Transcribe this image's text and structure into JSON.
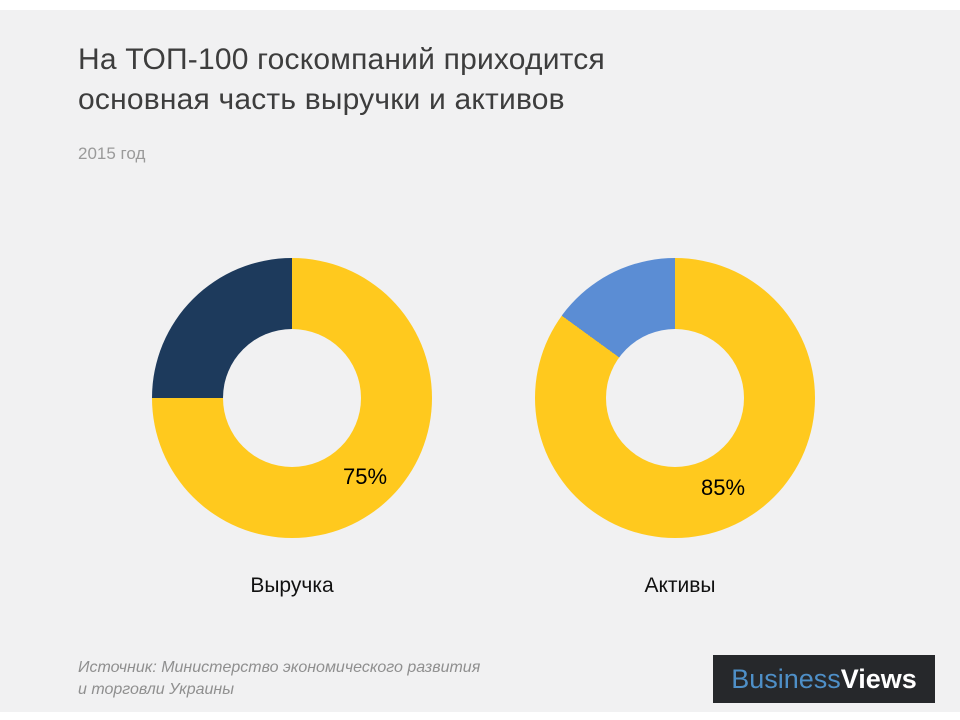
{
  "page": {
    "background": "#F1F1F2",
    "title_line1": "На ТОП-100 госкомпаний приходится",
    "title_line2": "основная часть выручки и активов",
    "subtitle": "2015 год",
    "source_line1": "Источник: Министерство экономического развития",
    "source_line2": "и торговли Украины"
  },
  "logo": {
    "part1": "Business",
    "part2": "Views",
    "background": "#26282B",
    "part1_color": "#4E8FC7",
    "part2_color": "#FFFFFF"
  },
  "colors": {
    "yellow": "#FFC91E",
    "navy": "#1D3A5C",
    "blue": "#5B8DD4",
    "title_text": "#3D3D3D",
    "muted_text": "#9A9A9A"
  },
  "chart_data": [
    {
      "type": "pie",
      "subtype": "donut",
      "category": "Выручка",
      "data_label": "75%",
      "start_angle_deg": 0,
      "direction": "clockwise",
      "hole_ratio": 0.49,
      "slices": [
        {
          "value": 75,
          "color": "#FFC91E"
        },
        {
          "value": 25,
          "color": "#1D3A5C"
        }
      ]
    },
    {
      "type": "pie",
      "subtype": "donut",
      "category": "Активы",
      "data_label": "85%",
      "start_angle_deg": 0,
      "direction": "clockwise",
      "hole_ratio": 0.49,
      "slices": [
        {
          "value": 85,
          "color": "#FFC91E"
        },
        {
          "value": 15,
          "color": "#5B8DD4"
        }
      ]
    }
  ]
}
